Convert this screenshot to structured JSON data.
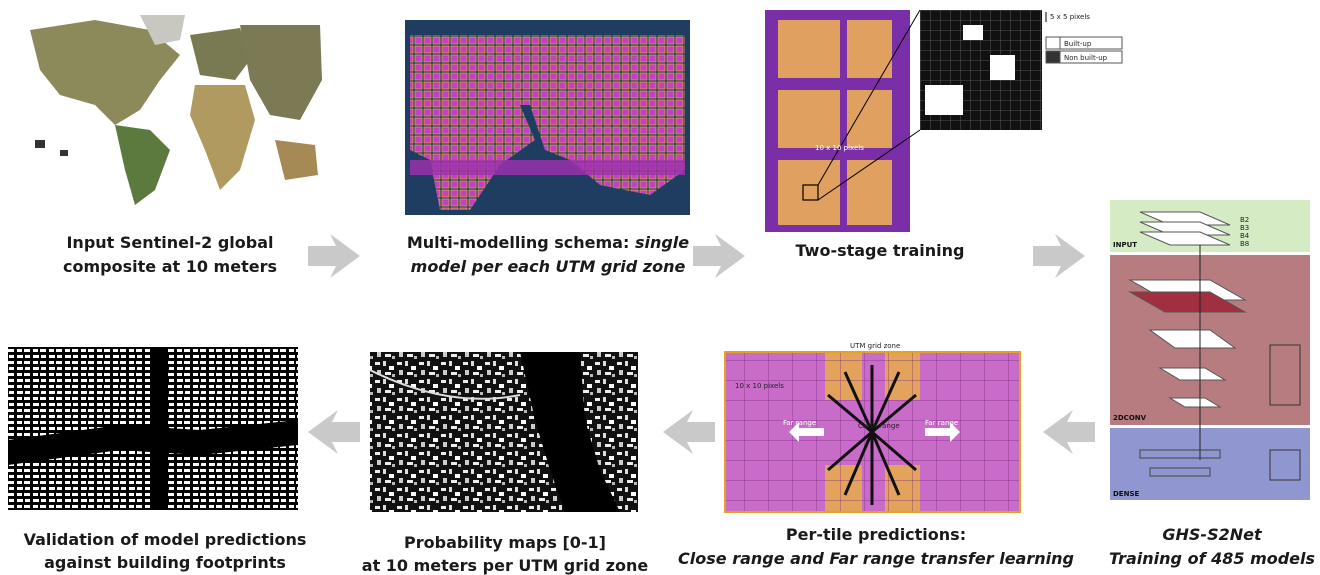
{
  "input": {
    "caption": [
      "Input Sentinel-2 global",
      "composite at 10 meters"
    ]
  },
  "schema": {
    "caption": "Multi-modelling schema:",
    "caption_italic": [
      "single",
      "model per each UTM grid zone"
    ]
  },
  "training": {
    "caption": "Two-stage training",
    "tile_label": "10 x 10 pixels",
    "patch_label": "5 x 5 pixels",
    "legend": [
      "Built-up",
      "Non built-up"
    ]
  },
  "network": {
    "caption": [
      "GHS-S2Net",
      "Training of 485 models"
    ],
    "blocks": [
      "INPUT",
      "2DCONV",
      "DENSE"
    ],
    "bands": [
      "B2",
      "B3",
      "B4",
      "B8"
    ]
  },
  "prediction": {
    "caption": [
      "Per-tile predictions:",
      "Close range and Far range transfer learning"
    ],
    "zone_label": "UTM grid zone",
    "tile_label": "10 x 10 pixels",
    "ranges": [
      "Far range",
      "Close range",
      "Far range"
    ]
  },
  "probability": {
    "caption": [
      "Probability maps [0-1]",
      "at 10 meters per UTM grid zone"
    ]
  },
  "validation": {
    "caption": [
      "Validation of model predictions",
      "against building footprints"
    ]
  }
}
